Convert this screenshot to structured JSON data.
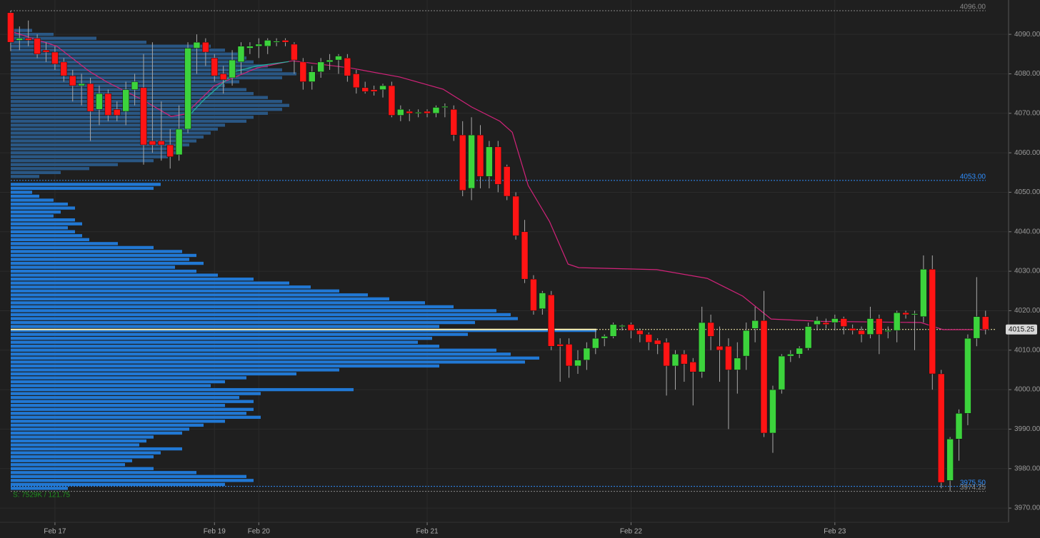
{
  "chart_data": {
    "type": "candlestick",
    "xlim": [
      -1.2,
      112.6
    ],
    "xticks": [
      {
        "value": 5,
        "label": "Feb 17"
      },
      {
        "value": 23,
        "label": "Feb 19"
      },
      {
        "value": 28,
        "label": "Feb 20"
      },
      {
        "value": 47,
        "label": "Feb 21"
      },
      {
        "value": 70,
        "label": "Feb 22"
      },
      {
        "value": 93,
        "label": "Feb 23"
      }
    ],
    "ylim": [
      3966.4,
      4098.7
    ],
    "yticks": [
      {
        "value": 3970,
        "label": "3970.00"
      },
      {
        "value": 3980,
        "label": "3980.00"
      },
      {
        "value": 3990,
        "label": "3990.00"
      },
      {
        "value": 4000,
        "label": "4000.00"
      },
      {
        "value": 4010,
        "label": "4010.00"
      },
      {
        "value": 4020,
        "label": "4020.00"
      },
      {
        "value": 4030,
        "label": "4030.00"
      },
      {
        "value": 4040,
        "label": "4040.00"
      },
      {
        "value": 4050,
        "label": "4050.00"
      },
      {
        "value": 4060,
        "label": "4060.00"
      },
      {
        "value": 4070,
        "label": "4070.00"
      },
      {
        "value": 4080,
        "label": "4080.00"
      },
      {
        "value": 4090,
        "label": "4090.00"
      }
    ],
    "grid": true,
    "up_color": "#3cd33c",
    "down_color": "#ff1414",
    "wick_color": "#a8a8a8",
    "candles": {
      "open": [
        4095.5,
        4088.5,
        4089,
        4089,
        4086,
        4085.5,
        4083,
        4079.5,
        4077,
        4077.5,
        4071,
        4075,
        4071,
        4070.5,
        4076,
        4076.5,
        4063,
        4063,
        4062,
        4059.5,
        4066,
        4086.5,
        4088,
        4084,
        4080,
        4079,
        4083,
        4086.5,
        4087,
        4087,
        4088,
        4088.5,
        4087.5,
        4083,
        4078,
        4080.5,
        4083,
        4083.5,
        4084,
        4080,
        4076.5,
        4076,
        4076,
        4077,
        4069.5,
        4070.5,
        4070,
        4070.5,
        4070,
        4071.5,
        4071,
        4064.5,
        4051,
        4064.5,
        4054,
        4061.5,
        4056.5,
        4049,
        4040,
        4028,
        4020.5,
        4024,
        4011.5,
        4011.5,
        4006,
        4007.5,
        4010.5,
        4013,
        4013.5,
        4016,
        4016.5,
        4015,
        4014,
        4012.5,
        4012,
        4006,
        4009,
        4007,
        4004.5,
        4017,
        4011,
        4011,
        4005,
        4008.5,
        4015.5,
        4017.5,
        3989,
        4000,
        4008.5,
        4009,
        4010.5,
        4016.5,
        4017,
        4017,
        4018,
        4015.5,
        4015,
        4014,
        4018,
        4015,
        4015,
        4019.5,
        4019,
        4018.5,
        4030.5,
        4004,
        3977,
        3987.5,
        3994,
        4013,
        4018.5
      ],
      "high": [
        4096,
        4092,
        4093.5,
        4090,
        4088,
        4087,
        4084,
        4081,
        4080,
        4079,
        4077,
        4076,
        4073,
        4078,
        4080,
        4085,
        4088,
        4073,
        4066,
        4072,
        4088,
        4090,
        4089,
        4085,
        4082,
        4086,
        4088,
        4088,
        4089,
        4089,
        4089,
        4089,
        4088,
        4084,
        4082,
        4084,
        4085,
        4085,
        4085,
        4081,
        4078,
        4077,
        4077.5,
        4078,
        4072,
        4071,
        4071,
        4071,
        4072,
        4072.5,
        4072,
        4068,
        4069,
        4067,
        4063,
        4063,
        4057,
        4050,
        4043,
        4029,
        4025,
        4025,
        4013,
        4013,
        4010,
        4012,
        4015,
        4014,
        4017,
        4016.5,
        4017,
        4015.5,
        4014.5,
        4013,
        4013,
        4010,
        4010,
        4008,
        4021,
        4019,
        4016,
        4013,
        4012,
        4017,
        4021,
        4025,
        4001,
        4009,
        4010,
        4011,
        4017,
        4018.5,
        4018,
        4019,
        4018.5,
        4016.5,
        4016,
        4021,
        4019,
        4016,
        4020,
        4020,
        4020,
        4034,
        4034,
        4005,
        3988,
        3995,
        4014,
        4028.5,
        4020
      ],
      "low": [
        4085.75,
        4086,
        4087,
        4084,
        4083,
        4081,
        4078,
        4073,
        4072,
        4063,
        4067,
        4068,
        4068,
        4067,
        4072,
        4057,
        4060,
        4058,
        4056,
        4058,
        4065,
        4080,
        4082,
        4078,
        4075,
        4077,
        4080,
        4085,
        4084,
        4085,
        4087,
        4087,
        4080,
        4076,
        4076,
        4079,
        4081,
        4080,
        4078,
        4075,
        4075,
        4074.5,
        4074,
        4069,
        4068,
        4068,
        4069,
        4069,
        4069,
        4069,
        4063,
        4049,
        4048,
        4051,
        4051,
        4050,
        4048,
        4038,
        4027,
        4019,
        4019,
        4010,
        4002,
        4003,
        4004,
        4005,
        4009,
        4011,
        4013,
        4015,
        4013,
        4012,
        4010,
        4009,
        3998.5,
        4000,
        4002,
        3996,
        4003,
        4010,
        4002,
        3990,
        3999,
        4005,
        4012,
        3988,
        3984,
        3999,
        4007,
        4008,
        4010,
        4015,
        4015.5,
        4015,
        4014,
        4014,
        4012,
        4013,
        4009,
        4013,
        4012,
        4018,
        4010,
        4017,
        4000,
        3975,
        3974.25,
        3982,
        3991,
        4011,
        4014
      ],
      "close": [
        4088,
        4089,
        4088.5,
        4085,
        4085.5,
        4082.5,
        4079.5,
        4077,
        4077.5,
        4070.5,
        4075,
        4069.5,
        4069.5,
        4076,
        4078,
        4062,
        4062,
        4062,
        4059,
        4066,
        4086.5,
        4088,
        4085.5,
        4079.5,
        4078.5,
        4083.5,
        4087,
        4087,
        4087.5,
        4088.5,
        4088.25,
        4088,
        4083.5,
        4078,
        4080.5,
        4083,
        4083.5,
        4084.5,
        4079.5,
        4076.5,
        4075.5,
        4075.5,
        4077,
        4069.5,
        4071,
        4070,
        4070.25,
        4070,
        4071.5,
        4071.75,
        4064.5,
        4050.5,
        4064.5,
        4054,
        4061.5,
        4052,
        4049,
        4039,
        4028,
        4020,
        4024.5,
        4011,
        4011,
        4006,
        4007.5,
        4010.5,
        4013,
        4013.5,
        4016.5,
        4016.25,
        4015,
        4014,
        4012,
        4011.5,
        4006,
        4009,
        4006.5,
        4004.5,
        4017,
        4013.5,
        4010,
        4005,
        4008,
        4015,
        4017.5,
        3989,
        4000,
        4008.5,
        4009,
        4010.5,
        4016,
        4017.5,
        4016.5,
        4018,
        4016,
        4015,
        4014,
        4018,
        4014,
        4015,
        4019.5,
        4019,
        4019.25,
        4030.5,
        4004,
        3976.5,
        3987.5,
        3994,
        4013,
        4018.5,
        4015.25
      ]
    },
    "series": [
      {
        "color": "#d2237a",
        "x": [
          0.4,
          5.2,
          8.9,
          10.9,
          14.9,
          18.1,
          19.7,
          23,
          27.8,
          31.8,
          38.3,
          43.9,
          48.8,
          52,
          55.2,
          56.6,
          58.4,
          60.8,
          62.9,
          64.1,
          72.9,
          78.6,
          82.6,
          85.8,
          91.5,
          102.7,
          105.2,
          110
        ],
        "values": [
          4090.5,
          4087,
          4080.6,
          4077.9,
          4073.4,
          4069.2,
          4069.8,
          4077,
          4081.5,
          4083.3,
          4081.5,
          4079.2,
          4076.1,
          4071.6,
          4068,
          4065.2,
          4051.7,
          4042.6,
          4031.8,
          4030.9,
          4030.4,
          4028.2,
          4023.7,
          4017.9,
          4017.3,
          4017,
          4015.2,
          4015.2
        ]
      },
      {
        "color": "#26b5a0",
        "x": [
          19.9,
          21.8,
          25.4,
          27.8,
          31.4
        ],
        "values": [
          4068.9,
          4073.4,
          4080.6,
          4082,
          4083.1
        ]
      }
    ],
    "profiles": [
      {
        "color": "#2a5784",
        "prices": [
          4091,
          4090,
          4089,
          4088,
          4087,
          4086,
          4085,
          4084,
          4083,
          4082,
          4081,
          4080,
          4079,
          4078,
          4077,
          4076,
          4075,
          4074,
          4073,
          4072,
          4071,
          4070,
          4069,
          4068,
          4067,
          4066,
          4065,
          4064,
          4063,
          4062,
          4061,
          4060,
          4059,
          4058,
          4057,
          4056,
          4055,
          4054
        ],
        "volumes": [
          30,
          60,
          120,
          190,
          280,
          300,
          320,
          330,
          340,
          360,
          380,
          400,
          380,
          320,
          300,
          330,
          340,
          360,
          380,
          390,
          380,
          360,
          340,
          330,
          300,
          290,
          280,
          270,
          260,
          250,
          240,
          240,
          220,
          200,
          150,
          110,
          70,
          40
        ]
      },
      {
        "color": "#2178d4",
        "prices": [
          4052,
          4051,
          4050,
          4049,
          4048,
          4047,
          4046,
          4045,
          4044,
          4043,
          4042,
          4041,
          4040,
          4039,
          4038,
          4037,
          4036,
          4035,
          4034,
          4033,
          4032,
          4031,
          4030,
          4029,
          4028,
          4027,
          4026,
          4025,
          4024,
          4023,
          4022,
          4021,
          4020,
          4019,
          4018,
          4017,
          4016,
          4015,
          4014,
          4013,
          4012,
          4011,
          4010,
          4009,
          4008,
          4007,
          4006,
          4005,
          4004,
          4003,
          4002,
          4001,
          4000,
          3999,
          3998,
          3997,
          3996,
          3995,
          3994,
          3993,
          3992,
          3991,
          3990,
          3989,
          3988,
          3987,
          3986,
          3985,
          3984,
          3983,
          3982,
          3981,
          3980,
          3979,
          3978,
          3977,
          3976,
          3975
        ],
        "volumes": [
          210,
          200,
          30,
          40,
          60,
          80,
          90,
          70,
          60,
          90,
          100,
          80,
          90,
          100,
          110,
          150,
          200,
          240,
          260,
          250,
          270,
          230,
          260,
          290,
          340,
          390,
          420,
          460,
          500,
          530,
          580,
          620,
          680,
          700,
          710,
          650,
          600,
          820,
          640,
          590,
          570,
          600,
          680,
          700,
          740,
          720,
          600,
          460,
          400,
          330,
          300,
          280,
          480,
          350,
          320,
          340,
          300,
          340,
          330,
          350,
          300,
          270,
          250,
          240,
          200,
          190,
          180,
          240,
          210,
          200,
          170,
          160,
          200,
          260,
          330,
          340,
          300,
          80
        ]
      }
    ],
    "poc": {
      "value": 4015.25,
      "color": "#fff3b0"
    },
    "levels": [
      {
        "value": 4096,
        "label": "4096.00",
        "color": "#8a8a8a"
      },
      {
        "value": 4053,
        "label": "4053.00",
        "color": "#2f8fff"
      },
      {
        "value": 3975.5,
        "label": "3975.50",
        "color": "#2f8fff"
      },
      {
        "value": 3974.25,
        "label": "3974.25",
        "color": "#8a8a8a"
      }
    ],
    "last_price": 4015.25,
    "profile_stats": "S: 7529K / 121.75"
  }
}
